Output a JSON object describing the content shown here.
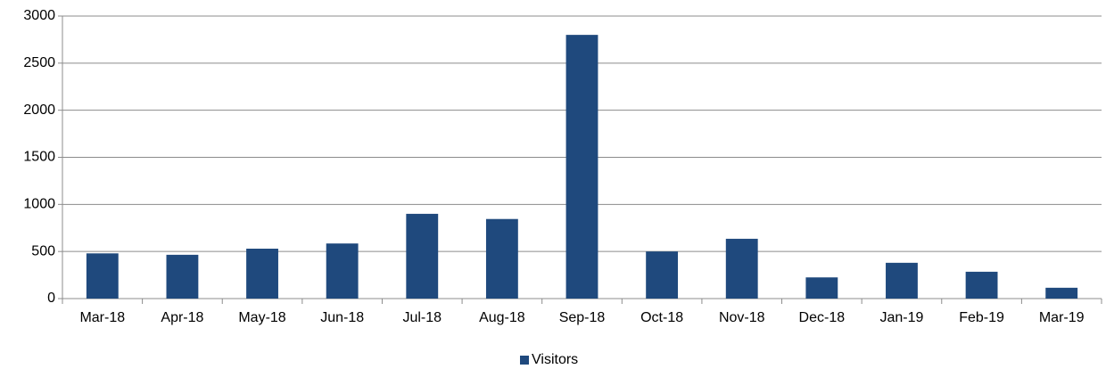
{
  "chart_data": {
    "type": "bar",
    "categories": [
      "Mar-18",
      "Apr-18",
      "May-18",
      "Jun-18",
      "Jul-18",
      "Aug-18",
      "Sep-18",
      "Oct-18",
      "Nov-18",
      "Dec-18",
      "Jan-19",
      "Feb-19",
      "Mar-19"
    ],
    "series": [
      {
        "name": "Visitors",
        "color": "#1f497d",
        "values": [
          480,
          465,
          530,
          585,
          900,
          845,
          2800,
          500,
          635,
          225,
          380,
          285,
          115
        ]
      }
    ],
    "ylim": [
      0,
      3000
    ],
    "yticks": [
      0,
      500,
      1000,
      1500,
      2000,
      2500,
      3000
    ],
    "grid": true,
    "legend": "bottom"
  }
}
